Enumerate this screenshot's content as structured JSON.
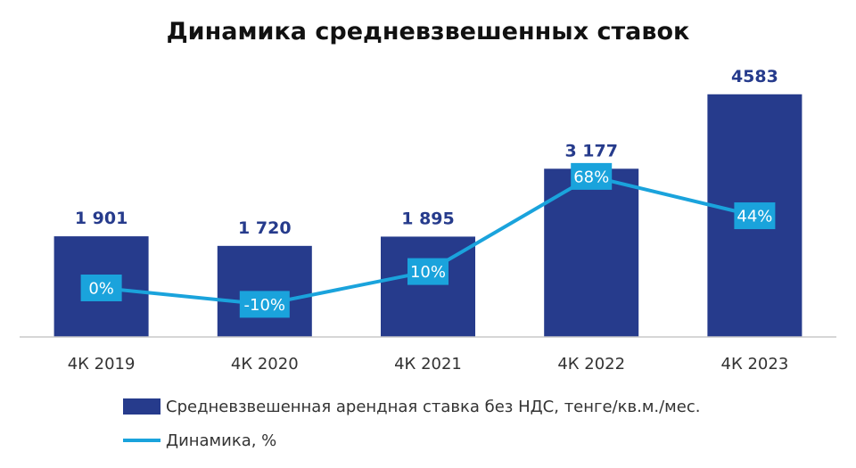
{
  "chart_data": {
    "type": "bar",
    "title": "Динамика средневзвешенных ставок",
    "categories": [
      "4К 2019",
      "4К 2020",
      "4К 2021",
      "4К 2022",
      "4К 2023"
    ],
    "series": [
      {
        "name": "Средневзвешенная арендная ставка без НДС,  тенге/кв.м./мес.",
        "type": "bar",
        "values": [
          1901,
          1720,
          1895,
          3177,
          4583
        ],
        "value_labels": [
          "1 901",
          "1 720",
          "1 895",
          "3 177",
          "4583"
        ],
        "color": "#263b8c"
      },
      {
        "name": "Динамика, %",
        "type": "line",
        "values": [
          0,
          -10,
          10,
          68,
          44
        ],
        "value_labels": [
          "0%",
          "-10%",
          "10%",
          "68%",
          "44%"
        ],
        "color": "#1aa3dc"
      }
    ],
    "legend_position": "bottom",
    "grid": false
  }
}
